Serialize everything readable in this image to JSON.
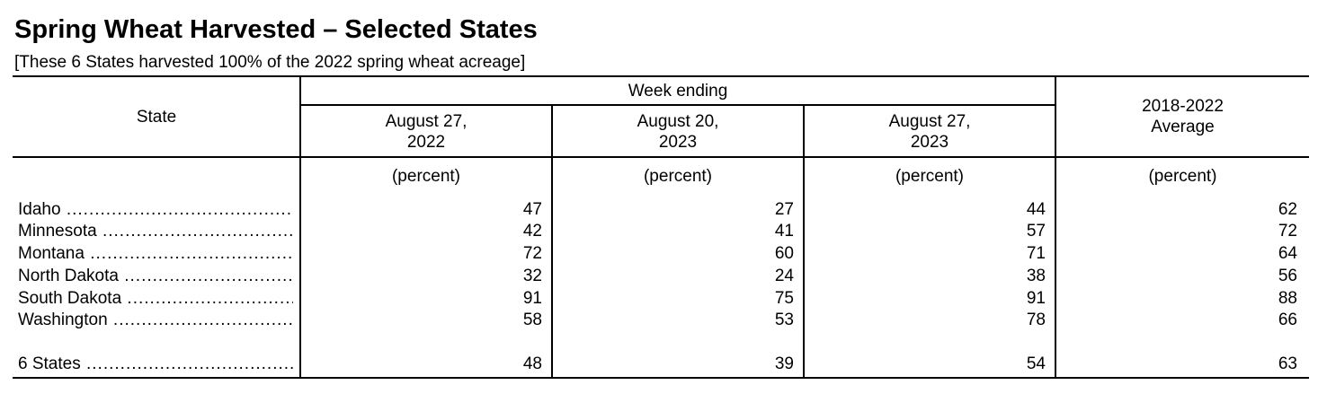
{
  "title": "Spring Wheat Harvested – Selected States",
  "subtitle": "[These 6 States harvested 100% of the 2022 spring wheat acreage]",
  "table": {
    "stub_header": "State",
    "group_header": "Week ending",
    "columns": [
      {
        "line1": "August 27,",
        "line2": "2022",
        "unit": "(percent)"
      },
      {
        "line1": "August 20,",
        "line2": "2023",
        "unit": "(percent)"
      },
      {
        "line1": "August 27,",
        "line2": "2023",
        "unit": "(percent)"
      },
      {
        "line1": "2018-2022",
        "line2": "Average",
        "unit": "(percent)"
      }
    ],
    "rows": [
      {
        "state": "Idaho",
        "values": [
          "47",
          "27",
          "44",
          "62"
        ]
      },
      {
        "state": "Minnesota",
        "values": [
          "42",
          "41",
          "57",
          "72"
        ]
      },
      {
        "state": "Montana",
        "values": [
          "72",
          "60",
          "71",
          "64"
        ]
      },
      {
        "state": "North Dakota",
        "values": [
          "32",
          "24",
          "38",
          "56"
        ]
      },
      {
        "state": "South Dakota",
        "values": [
          "91",
          "75",
          "91",
          "88"
        ]
      },
      {
        "state": "Washington",
        "values": [
          "58",
          "53",
          "78",
          "66"
        ]
      }
    ],
    "total": {
      "state": "6 States",
      "values": [
        "48",
        "39",
        "54",
        "63"
      ]
    }
  }
}
